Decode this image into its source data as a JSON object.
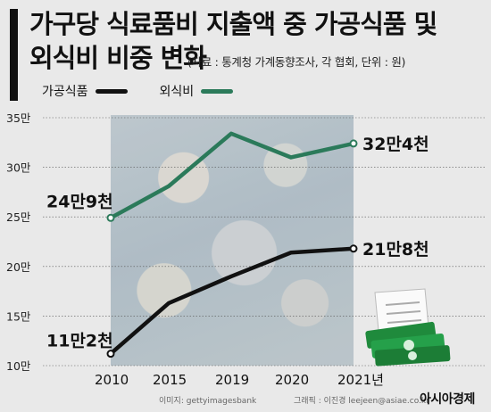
{
  "title": {
    "line1": "가구당 식료품비 지출액 중 가공식품 및",
    "line2": "외식비 비중 변화"
  },
  "subtitle": "(자료 : 통계청 가계동향조사, 각 협회, 단위 : 원)",
  "legend": [
    {
      "label": "가공식품",
      "color": "#111111"
    },
    {
      "label": "외식비",
      "color": "#2b7a5a"
    }
  ],
  "footer": {
    "image_credit": "이미지: gettyimagesbank",
    "graphic_credit": "그래픽 : 이진경 leejeen@asiae.co.kr",
    "brand": "아시아경제"
  },
  "colors": {
    "processed": "#111111",
    "dining": "#2b7a5a",
    "background": "#e9e9e9"
  },
  "chart_data": {
    "type": "line",
    "categories": [
      "2010",
      "2015",
      "2019",
      "2020",
      "2021년"
    ],
    "ylim": [
      10,
      35
    ],
    "y_ticks": [
      "10만",
      "15만",
      "20만",
      "25만",
      "30만",
      "35만"
    ],
    "y_tick_values": [
      10,
      15,
      20,
      25,
      30,
      35
    ],
    "grid": true,
    "series": [
      {
        "name": "가공식품",
        "values": [
          11.2,
          16.3,
          19.0,
          21.4,
          21.8
        ],
        "color": "#111111"
      },
      {
        "name": "외식비",
        "values": [
          24.9,
          28.1,
          33.4,
          31.0,
          32.4
        ],
        "color": "#2b7a5a"
      }
    ],
    "annotations": [
      {
        "series": 0,
        "index": 0,
        "text": "11만2천"
      },
      {
        "series": 0,
        "index": 4,
        "text": "21만8천"
      },
      {
        "series": 1,
        "index": 0,
        "text": "24만9천"
      },
      {
        "series": 1,
        "index": 4,
        "text": "32만4천"
      }
    ]
  }
}
